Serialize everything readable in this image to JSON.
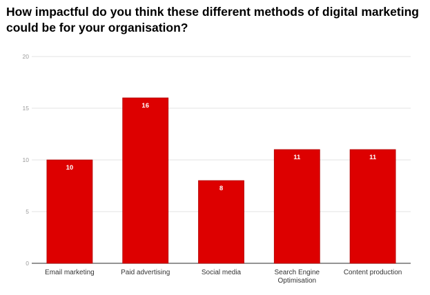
{
  "chart_data": {
    "type": "bar",
    "title": "How impactful do you think these different methods of digital marketing could be for your organisation?",
    "categories": [
      [
        "Email marketing"
      ],
      [
        "Paid advertising"
      ],
      [
        "Social media"
      ],
      [
        "Search Engine",
        "Optimisation"
      ],
      [
        "Content production"
      ]
    ],
    "values": [
      10,
      16,
      8,
      11,
      11
    ],
    "ylim": [
      0,
      20
    ],
    "yticks": [
      0,
      5,
      10,
      15,
      20
    ],
    "grid": true,
    "data_labels": true,
    "bar_color": "#dd0000"
  }
}
